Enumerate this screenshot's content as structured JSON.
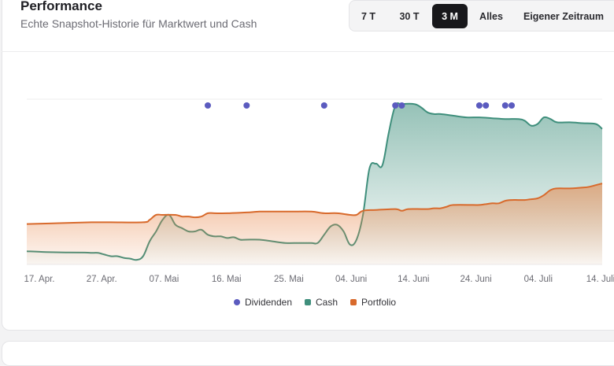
{
  "header": {
    "title": "Performance",
    "subtitle": "Echte Snapshot-Historie für Marktwert und Cash"
  },
  "range_buttons": [
    {
      "label": "7 T",
      "active": false
    },
    {
      "label": "30 T",
      "active": false
    },
    {
      "label": "3 M",
      "active": true
    },
    {
      "label": "Alles",
      "active": false
    },
    {
      "label": "Eigener Zeitraum",
      "active": false
    }
  ],
  "colors": {
    "dividends": "#5b5bbf",
    "cash": "#3f8f7c",
    "portfolio": "#d86a2c"
  },
  "chart_data": {
    "type": "area",
    "categories": [
      "17. Apr.",
      "27. Apr.",
      "07. Mai",
      "16. Mai",
      "25. Mai",
      "04. Juni",
      "14. Juni",
      "24. Juni",
      "04. Juli",
      "14. Juli"
    ],
    "x_range": [
      0,
      89
    ],
    "ylim": [
      0,
      100
    ],
    "grid": true,
    "legend_position": "bottom-center",
    "series": [
      {
        "name": "Cash",
        "color": "#3f8f7c",
        "values": [
          [
            0,
            8
          ],
          [
            3,
            7.5
          ],
          [
            6,
            7.3
          ],
          [
            9,
            7.2
          ],
          [
            10,
            7
          ],
          [
            11,
            7
          ],
          [
            12,
            6
          ],
          [
            13,
            5
          ],
          [
            14,
            5
          ],
          [
            15,
            4
          ],
          [
            16,
            3.5
          ],
          [
            17,
            2.8
          ],
          [
            18,
            5
          ],
          [
            19,
            14
          ],
          [
            20,
            20
          ],
          [
            21,
            27
          ],
          [
            22,
            30
          ],
          [
            23,
            24
          ],
          [
            24,
            22
          ],
          [
            25,
            20
          ],
          [
            26,
            20
          ],
          [
            27,
            21
          ],
          [
            28,
            18
          ],
          [
            29,
            17
          ],
          [
            30,
            17
          ],
          [
            31,
            16
          ],
          [
            32,
            16.5
          ],
          [
            33,
            15
          ],
          [
            34,
            15
          ],
          [
            36,
            15
          ],
          [
            38,
            14
          ],
          [
            40,
            13
          ],
          [
            42,
            13
          ],
          [
            44,
            13
          ],
          [
            45,
            13
          ],
          [
            46,
            18
          ],
          [
            47,
            23
          ],
          [
            48,
            24
          ],
          [
            49,
            20
          ],
          [
            50,
            12
          ],
          [
            51,
            15
          ],
          [
            52,
            30
          ],
          [
            53,
            58
          ],
          [
            54,
            61
          ],
          [
            55,
            60
          ],
          [
            56,
            80
          ],
          [
            57,
            96
          ],
          [
            58,
            97
          ],
          [
            60,
            97
          ],
          [
            61,
            95
          ],
          [
            62,
            92
          ],
          [
            63,
            91
          ],
          [
            64,
            91
          ],
          [
            66,
            90
          ],
          [
            68,
            89
          ],
          [
            70,
            89
          ],
          [
            72,
            88.5
          ],
          [
            74,
            88
          ],
          [
            76,
            88
          ],
          [
            77,
            87
          ],
          [
            78,
            84
          ],
          [
            79,
            85
          ],
          [
            80,
            89
          ],
          [
            81,
            88
          ],
          [
            82,
            86
          ],
          [
            84,
            86
          ],
          [
            86,
            85.5
          ],
          [
            88,
            85
          ],
          [
            89,
            82
          ]
        ]
      },
      {
        "name": "Portfolio",
        "color": "#d86a2c",
        "values": [
          [
            0,
            24.5
          ],
          [
            5,
            25
          ],
          [
            10,
            25.5
          ],
          [
            13,
            25.5
          ],
          [
            18,
            25.5
          ],
          [
            19,
            27
          ],
          [
            20,
            30
          ],
          [
            21,
            30
          ],
          [
            23,
            30
          ],
          [
            24,
            29
          ],
          [
            25,
            29
          ],
          [
            26,
            28.5
          ],
          [
            27,
            29
          ],
          [
            28,
            31
          ],
          [
            29,
            31
          ],
          [
            31,
            31
          ],
          [
            34,
            31.5
          ],
          [
            36,
            32
          ],
          [
            38,
            32
          ],
          [
            41,
            32
          ],
          [
            44,
            32
          ],
          [
            46,
            31
          ],
          [
            48,
            31
          ],
          [
            50,
            30
          ],
          [
            51,
            30
          ],
          [
            52,
            32.5
          ],
          [
            54,
            33
          ],
          [
            57,
            33.5
          ],
          [
            58,
            32.5
          ],
          [
            59,
            33.5
          ],
          [
            61,
            33.5
          ],
          [
            62,
            33.5
          ],
          [
            63,
            34
          ],
          [
            64,
            34
          ],
          [
            65,
            35
          ],
          [
            66,
            36
          ],
          [
            69,
            36
          ],
          [
            70,
            36
          ],
          [
            71,
            36.5
          ],
          [
            72,
            37
          ],
          [
            73,
            37
          ],
          [
            74,
            38.5
          ],
          [
            75,
            39
          ],
          [
            76,
            39
          ],
          [
            77,
            39
          ],
          [
            78,
            39.5
          ],
          [
            79,
            40
          ],
          [
            80,
            42
          ],
          [
            81,
            45
          ],
          [
            82,
            46
          ],
          [
            84,
            46
          ],
          [
            86,
            46.5
          ],
          [
            87,
            47
          ],
          [
            88,
            48
          ],
          [
            89,
            49
          ]
        ]
      },
      {
        "name": "Dividenden",
        "color": "#5b5bbf",
        "type": "scatter",
        "values": [
          [
            28,
            100
          ],
          [
            34,
            100
          ],
          [
            46,
            100
          ],
          [
            57,
            100
          ],
          [
            58,
            100
          ],
          [
            70,
            100
          ],
          [
            71,
            100
          ],
          [
            74,
            100
          ],
          [
            75,
            100
          ]
        ]
      }
    ]
  },
  "legend": [
    {
      "label": "Dividenden",
      "color": "#5b5bbf"
    },
    {
      "label": "Cash",
      "color": "#3f8f7c"
    },
    {
      "label": "Portfolio",
      "color": "#d86a2c"
    }
  ]
}
